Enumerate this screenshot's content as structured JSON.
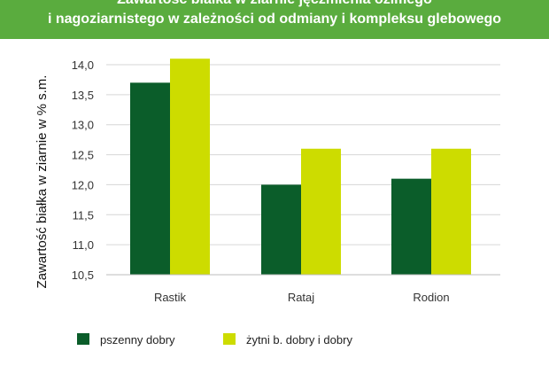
{
  "header": {
    "line1": "Zawartość białka w ziarnie jęczmienia ozimego",
    "line2": "i nagoziarnistego w zależności od odmiany i kompleksu glebowego",
    "bg_color": "#5aac3e"
  },
  "chart_data": {
    "type": "bar",
    "ylabel": "Zawartość białka w ziarnie w % s.m.",
    "ylim": [
      10.5,
      14.0
    ],
    "yticks": [
      "14,0",
      "13,5",
      "13,0",
      "12,5",
      "12,0",
      "11,5",
      "11,0",
      "10,5"
    ],
    "ytick_values": [
      14.0,
      13.5,
      13.0,
      12.5,
      12.0,
      11.5,
      11.0,
      10.5
    ],
    "categories": [
      "Rastik",
      "Rataj",
      "Rodion"
    ],
    "series": [
      {
        "name": "pszenny dobry",
        "values": [
          13.7,
          12.0,
          12.1
        ],
        "color": "#0b5d2a"
      },
      {
        "name": "żytni b. dobry i dobry",
        "values": [
          14.1,
          12.6,
          12.6
        ],
        "color": "#cddc00"
      }
    ],
    "grid": true,
    "legend_position": "bottom"
  }
}
